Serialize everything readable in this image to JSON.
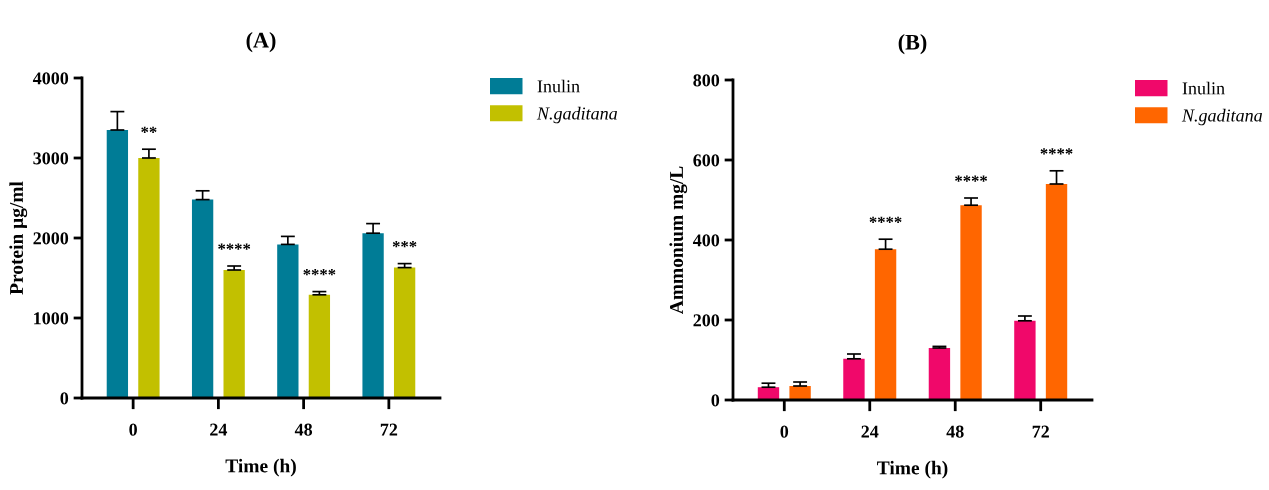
{
  "chart_data": [
    {
      "type": "bar",
      "title": "(A)",
      "xlabel": "Time (h)",
      "ylabel": "Protein μg/ml",
      "categories": [
        "0",
        "24",
        "48",
        "72"
      ],
      "series": [
        {
          "name": "Inulin",
          "color": "#007c96",
          "values": [
            3350,
            2480,
            1920,
            2060
          ],
          "errors": [
            [
              3350,
              3580
            ],
            [
              2480,
              2590
            ],
            [
              1920,
              2020
            ],
            [
              2060,
              2180
            ]
          ]
        },
        {
          "name": "N.gaditana",
          "color": "#c2c000",
          "values": [
            3000,
            1600,
            1290,
            1630
          ],
          "errors": [
            [
              3000,
              3110
            ],
            [
              1600,
              1650
            ],
            [
              1290,
              1330
            ],
            [
              1630,
              1680
            ]
          ]
        }
      ],
      "ylim": [
        0,
        4000
      ],
      "yticks": [
        0,
        1000,
        2000,
        3000,
        4000
      ],
      "legend": "right",
      "annotations": [
        "**",
        "****",
        "****",
        "***"
      ]
    },
    {
      "type": "bar",
      "title": "(B)",
      "xlabel": "Time (h)",
      "ylabel": "Ammonium mg/L",
      "categories": [
        "0",
        "24",
        "48",
        "72"
      ],
      "series": [
        {
          "name": "Inulin",
          "color": "#f0086a",
          "values": [
            32,
            103,
            130,
            198
          ],
          "errors": [
            [
              32,
              42
            ],
            [
              103,
              115
            ],
            [
              130,
              134
            ],
            [
              198,
              210
            ]
          ]
        },
        {
          "name": "N.gaditana",
          "color": "#ff6600",
          "values": [
            35,
            377,
            487,
            540
          ],
          "errors": [
            [
              35,
              45
            ],
            [
              377,
              402
            ],
            [
              487,
              505
            ],
            [
              540,
              573
            ]
          ]
        }
      ],
      "ylim": [
        0,
        800
      ],
      "yticks": [
        0,
        200,
        400,
        600,
        800
      ],
      "legend": "right",
      "annotations": [
        "****",
        "****",
        "****"
      ]
    }
  ]
}
